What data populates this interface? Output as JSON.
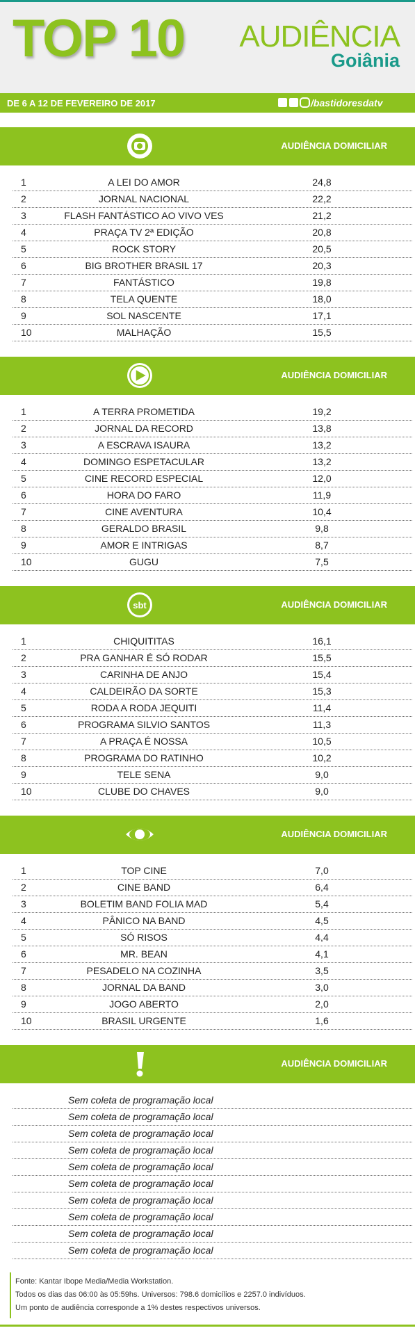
{
  "header": {
    "title": "TOP 10",
    "brand": "AUDIÊNCIA",
    "city": "Goiânia",
    "date_range": "DE 6 A 12 DE FEVEREIRO DE 2017",
    "handle": "/bastidoresdatv"
  },
  "sections": [
    {
      "logo": "globo",
      "column_label": "AUDIÊNCIA DOMICILIAR",
      "rows": [
        [
          "1",
          "A LEI DO AMOR",
          "24,8"
        ],
        [
          "2",
          "JORNAL NACIONAL",
          "22,2"
        ],
        [
          "3",
          "FLASH FANTÁSTICO AO VIVO VES",
          "21,2"
        ],
        [
          "4",
          "PRAÇA TV 2ª EDIÇÃO",
          "20,8"
        ],
        [
          "5",
          "ROCK STORY",
          "20,5"
        ],
        [
          "6",
          "BIG BROTHER BRASIL 17",
          "20,3"
        ],
        [
          "7",
          "FANTÁSTICO",
          "19,8"
        ],
        [
          "8",
          "TELA QUENTE",
          "18,0"
        ],
        [
          "9",
          "SOL NASCENTE",
          "17,1"
        ],
        [
          "10",
          "MALHAÇÃO",
          "15,5"
        ]
      ]
    },
    {
      "logo": "record",
      "column_label": "AUDIÊNCIA DOMICILIAR",
      "rows": [
        [
          "1",
          "A TERRA PROMETIDA",
          "19,2"
        ],
        [
          "2",
          "JORNAL DA RECORD",
          "13,8"
        ],
        [
          "3",
          "A ESCRAVA ISAURA",
          "13,2"
        ],
        [
          "4",
          "DOMINGO ESPETACULAR",
          "13,2"
        ],
        [
          "5",
          "CINE RECORD ESPECIAL",
          "12,0"
        ],
        [
          "6",
          "HORA DO FARO",
          "11,9"
        ],
        [
          "7",
          "CINE AVENTURA",
          "10,4"
        ],
        [
          "8",
          "GERALDO BRASIL",
          "9,8"
        ],
        [
          "9",
          "AMOR E INTRIGAS",
          "8,7"
        ],
        [
          "10",
          "GUGU",
          "7,5"
        ]
      ]
    },
    {
      "logo": "sbt",
      "column_label": "AUDIÊNCIA DOMICILIAR",
      "rows": [
        [
          "1",
          "CHIQUITITAS",
          "16,1"
        ],
        [
          "2",
          "PRA GANHAR É SÓ RODAR",
          "15,5"
        ],
        [
          "3",
          "CARINHA DE ANJO",
          "15,4"
        ],
        [
          "4",
          "CALDEIRÃO DA SORTE",
          "15,3"
        ],
        [
          "5",
          "RODA A RODA JEQUITI",
          "11,4"
        ],
        [
          "6",
          "PROGRAMA SILVIO SANTOS",
          "11,3"
        ],
        [
          "7",
          "A PRAÇA É NOSSA",
          "10,5"
        ],
        [
          "8",
          "PROGRAMA DO RATINHO",
          "10,2"
        ],
        [
          "9",
          "TELE SENA",
          "9,0"
        ],
        [
          "10",
          "CLUBE DO CHAVES",
          "9,0"
        ]
      ]
    },
    {
      "logo": "band",
      "column_label": "AUDIÊNCIA DOMICILIAR",
      "rows": [
        [
          "1",
          "TOP CINE",
          "7,0"
        ],
        [
          "2",
          "CINE BAND",
          "6,4"
        ],
        [
          "3",
          "BOLETIM BAND FOLIA MAD",
          "5,4"
        ],
        [
          "4",
          "PÂNICO NA BAND",
          "4,5"
        ],
        [
          "5",
          "SÓ RISOS",
          "4,4"
        ],
        [
          "6",
          "MR. BEAN",
          "4,1"
        ],
        [
          "7",
          "PESADELO NA COZINHA",
          "3,5"
        ],
        [
          "8",
          "JORNAL DA BAND",
          "3,0"
        ],
        [
          "9",
          "JOGO ABERTO",
          "2,0"
        ],
        [
          "10",
          "BRASIL URGENTE",
          "1,6"
        ]
      ]
    },
    {
      "logo": "other",
      "column_label": "AUDIÊNCIA DOMICILIAR",
      "rows": [
        [
          "Sem coleta de programação local"
        ],
        [
          "Sem coleta de programação local"
        ],
        [
          "Sem coleta de programação local"
        ],
        [
          "Sem coleta de programação local"
        ],
        [
          "Sem coleta de programação local"
        ],
        [
          "Sem coleta de programação local"
        ],
        [
          "Sem coleta de programação local"
        ],
        [
          "Sem coleta de programação local"
        ],
        [
          "Sem coleta de programação local"
        ],
        [
          "Sem coleta de programação local"
        ]
      ]
    }
  ],
  "footer": [
    "Fonte: Kantar Ibope Media/Media Workstation.",
    "Todos os dias das 06:00 às 05:59hs. Universos: 798.6 domicílios e 2257.0 indivíduos.",
    "Um ponto de audiência corresponde a 1% destes respectivos universos."
  ]
}
